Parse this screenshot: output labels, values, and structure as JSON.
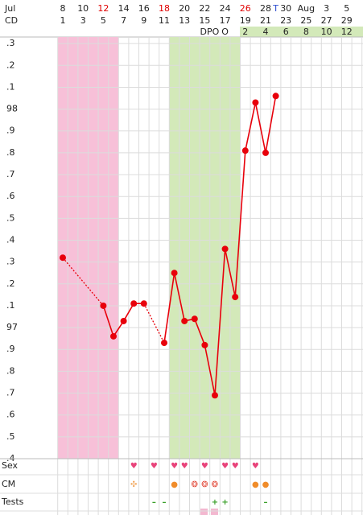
{
  "chart_data": {
    "type": "line",
    "header_labels": [
      "Jul",
      "CD",
      "DPO"
    ],
    "date_labels": [
      "8",
      null,
      "10",
      null,
      "12",
      null,
      "14",
      null,
      "16",
      null,
      "18",
      null,
      "20",
      null,
      "22",
      null,
      "24",
      null,
      "26",
      null,
      "28",
      "T",
      "30",
      null,
      "Aug",
      null,
      "3",
      null,
      "5"
    ],
    "red_dates": [
      4,
      10,
      18
    ],
    "blue_dates": [
      21
    ],
    "categories": [
      "1",
      null,
      "3",
      null,
      "5",
      null,
      "7",
      null,
      "9",
      null,
      "11",
      null,
      "13",
      null,
      "15",
      null,
      "17",
      null,
      "19",
      null,
      "21",
      null,
      "23",
      null,
      "25",
      null,
      "27",
      null,
      "29"
    ],
    "dpo_labels": [
      null,
      null,
      null,
      null,
      null,
      null,
      null,
      null,
      null,
      null,
      null,
      null,
      null,
      null,
      null,
      null,
      "O",
      null,
      "2",
      null,
      "4",
      null,
      "6",
      null,
      "8",
      null,
      "10",
      null,
      "12"
    ],
    "series": [
      {
        "color": "#e8000b",
        "values": [
          97.32,
          null,
          null,
          null,
          97.1,
          96.96,
          97.03,
          97.11,
          97.11,
          null,
          96.93,
          97.25,
          97.03,
          97.04,
          96.92,
          96.69,
          97.36,
          97.14,
          97.81,
          98.03,
          97.8,
          98.06,
          null,
          null,
          null,
          null,
          null,
          null,
          null
        ]
      }
    ],
    "ylim": [
      96.4,
      98.33
    ],
    "yticks": [
      {
        "value": 96.4,
        "label": ".4"
      },
      {
        "value": 96.5,
        "label": ".5"
      },
      {
        "value": 96.6,
        "label": ".6"
      },
      {
        "value": 96.7,
        "label": ".7"
      },
      {
        "value": 96.8,
        "label": ".8"
      },
      {
        "value": 96.9,
        "label": ".9"
      },
      97,
      {
        "value": 97.1,
        "label": ".1"
      },
      {
        "value": 97.2,
        "label": ".2"
      },
      {
        "value": 97.3,
        "label": ".3"
      },
      {
        "value": 97.4,
        "label": ".4"
      },
      {
        "value": 97.5,
        "label": ".5"
      },
      {
        "value": 97.6,
        "label": ".6"
      },
      {
        "value": 97.7,
        "label": ".7"
      },
      {
        "value": 97.8,
        "label": ".8"
      },
      {
        "value": 97.9,
        "label": ".9"
      },
      98,
      {
        "value": 98.1,
        "label": ".1"
      },
      {
        "value": 98.2,
        "label": ".2"
      },
      {
        "value": 98.3,
        "label": ".3"
      }
    ],
    "grid": true,
    "highlights": [
      {
        "start": 1,
        "end": 6,
        "color": "#f7c0d8"
      },
      {
        "start": 12,
        "end": 18,
        "color": "#d3e9b9"
      }
    ],
    "rows": [
      {
        "label": "Sex",
        "color": "#e8437a",
        "symbols": [
          null,
          null,
          null,
          null,
          null,
          null,
          null,
          "♥",
          null,
          "♥",
          null,
          "♥",
          "♥",
          null,
          "♥",
          null,
          "♥",
          "♥",
          null,
          "♥",
          null,
          null,
          null,
          null,
          null,
          null,
          null,
          null,
          null
        ]
      },
      {
        "label": "CM",
        "color": "#f08c2a",
        "symbols": [
          null,
          null,
          null,
          null,
          null,
          null,
          null,
          "✣",
          null,
          null,
          null,
          "●",
          null,
          "❂",
          "❂",
          "❂",
          null,
          null,
          null,
          "●",
          "●",
          null,
          null,
          null,
          null,
          null,
          null,
          null,
          null
        ],
        "colors": [
          null,
          null,
          null,
          null,
          null,
          null,
          null,
          "#f0a050",
          null,
          null,
          null,
          "#f08c2a",
          null,
          "#e24a3a",
          "#e24a3a",
          "#e24a3a",
          null,
          null,
          null,
          "#f08c2a",
          "#f08c2a",
          null,
          null,
          null,
          null,
          null,
          null,
          null,
          null
        ]
      },
      {
        "label": "Tests",
        "color": "#3aa02a",
        "symbols": [
          null,
          null,
          null,
          null,
          null,
          null,
          null,
          null,
          null,
          "–",
          "–",
          null,
          null,
          null,
          null,
          "+",
          "+",
          null,
          null,
          null,
          "–",
          null,
          null,
          null,
          null,
          null,
          null,
          null,
          null
        ]
      }
    ]
  }
}
